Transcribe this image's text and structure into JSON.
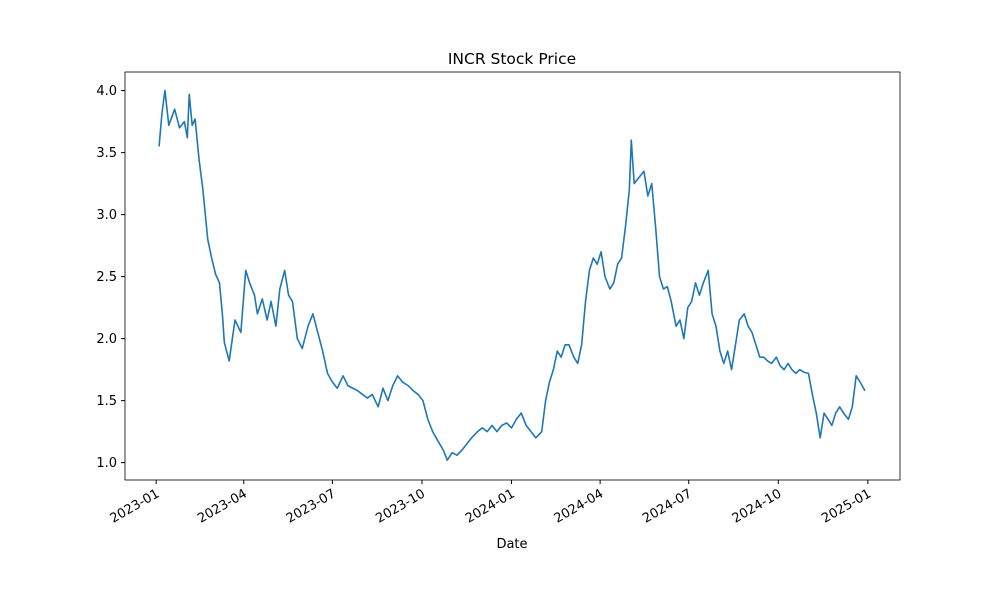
{
  "chart_data": {
    "type": "line",
    "title": "INCR Stock Price",
    "x_label": "Date",
    "color": "#1f77b4",
    "x": [
      "2023-01-04",
      "2023-01-07",
      "2023-01-10",
      "2023-01-14",
      "2023-01-20",
      "2023-01-25",
      "2023-01-30",
      "2023-02-02",
      "2023-02-04",
      "2023-02-07",
      "2023-02-10",
      "2023-02-14",
      "2023-02-18",
      "2023-02-23",
      "2023-02-27",
      "2023-03-03",
      "2023-03-07",
      "2023-03-10",
      "2023-03-12",
      "2023-03-17",
      "2023-03-23",
      "2023-03-29",
      "2023-04-03",
      "2023-04-07",
      "2023-04-12",
      "2023-04-15",
      "2023-04-20",
      "2023-04-25",
      "2023-04-29",
      "2023-05-04",
      "2023-05-08",
      "2023-05-13",
      "2023-05-17",
      "2023-05-21",
      "2023-05-26",
      "2023-05-31",
      "2023-06-06",
      "2023-06-11",
      "2023-06-16",
      "2023-06-21",
      "2023-06-26",
      "2023-07-01",
      "2023-07-06",
      "2023-07-12",
      "2023-07-17",
      "2023-07-22",
      "2023-07-27",
      "2023-08-01",
      "2023-08-06",
      "2023-08-11",
      "2023-08-17",
      "2023-08-22",
      "2023-08-27",
      "2023-09-01",
      "2023-09-06",
      "2023-09-11",
      "2023-09-17",
      "2023-09-22",
      "2023-09-27",
      "2023-10-02",
      "2023-10-07",
      "2023-10-12",
      "2023-10-17",
      "2023-10-23",
      "2023-10-27",
      "2023-11-01",
      "2023-11-06",
      "2023-11-11",
      "2023-11-16",
      "2023-11-21",
      "2023-11-27",
      "2023-12-02",
      "2023-12-07",
      "2023-12-12",
      "2023-12-17",
      "2023-12-22",
      "2023-12-27",
      "2024-01-01",
      "2024-01-06",
      "2024-01-11",
      "2024-01-16",
      "2024-01-21",
      "2024-01-26",
      "2024-02-01",
      "2024-02-05",
      "2024-02-09",
      "2024-02-13",
      "2024-02-17",
      "2024-02-21",
      "2024-02-25",
      "2024-02-29",
      "2024-03-05",
      "2024-03-09",
      "2024-03-13",
      "2024-03-17",
      "2024-03-21",
      "2024-03-25",
      "2024-03-29",
      "2024-04-02",
      "2024-04-06",
      "2024-04-11",
      "2024-04-15",
      "2024-04-19",
      "2024-04-23",
      "2024-04-27",
      "2024-05-01",
      "2024-05-03",
      "2024-05-06",
      "2024-05-11",
      "2024-05-16",
      "2024-05-20",
      "2024-05-24",
      "2024-05-28",
      "2024-06-01",
      "2024-06-05",
      "2024-06-09",
      "2024-06-13",
      "2024-06-18",
      "2024-06-22",
      "2024-06-26",
      "2024-06-30",
      "2024-07-04",
      "2024-07-08",
      "2024-07-12",
      "2024-07-16",
      "2024-07-21",
      "2024-07-25",
      "2024-07-29",
      "2024-08-02",
      "2024-08-06",
      "2024-08-10",
      "2024-08-14",
      "2024-08-18",
      "2024-08-22",
      "2024-08-27",
      "2024-08-31",
      "2024-09-04",
      "2024-09-08",
      "2024-09-12",
      "2024-09-16",
      "2024-09-20",
      "2024-09-24",
      "2024-09-29",
      "2024-10-03",
      "2024-10-07",
      "2024-10-11",
      "2024-10-15",
      "2024-10-19",
      "2024-10-23",
      "2024-10-27",
      "2024-11-01",
      "2024-11-05",
      "2024-11-09",
      "2024-11-13",
      "2024-11-17",
      "2024-11-21",
      "2024-11-25",
      "2024-11-29",
      "2024-12-03",
      "2024-12-07",
      "2024-12-12",
      "2024-12-16",
      "2024-12-20",
      "2024-12-24",
      "2024-12-29"
    ],
    "values": [
      3.55,
      3.82,
      4.0,
      3.72,
      3.85,
      3.7,
      3.75,
      3.62,
      3.97,
      3.72,
      3.77,
      3.45,
      3.2,
      2.8,
      2.65,
      2.52,
      2.45,
      2.2,
      1.97,
      1.82,
      2.15,
      2.05,
      2.55,
      2.45,
      2.35,
      2.2,
      2.32,
      2.15,
      2.3,
      2.1,
      2.4,
      2.55,
      2.35,
      2.3,
      2.0,
      1.92,
      2.1,
      2.2,
      2.05,
      1.9,
      1.72,
      1.65,
      1.6,
      1.7,
      1.62,
      1.6,
      1.58,
      1.55,
      1.52,
      1.55,
      1.45,
      1.6,
      1.5,
      1.62,
      1.7,
      1.65,
      1.62,
      1.58,
      1.55,
      1.5,
      1.35,
      1.25,
      1.18,
      1.1,
      1.02,
      1.08,
      1.06,
      1.1,
      1.15,
      1.2,
      1.25,
      1.28,
      1.25,
      1.3,
      1.25,
      1.3,
      1.32,
      1.28,
      1.35,
      1.4,
      1.3,
      1.25,
      1.2,
      1.25,
      1.5,
      1.65,
      1.75,
      1.9,
      1.85,
      1.95,
      1.95,
      1.85,
      1.8,
      1.95,
      2.3,
      2.55,
      2.65,
      2.6,
      2.7,
      2.5,
      2.4,
      2.45,
      2.6,
      2.65,
      2.9,
      3.2,
      3.6,
      3.25,
      3.3,
      3.35,
      3.15,
      3.25,
      2.9,
      2.5,
      2.4,
      2.42,
      2.3,
      2.1,
      2.15,
      2.0,
      2.25,
      2.3,
      2.45,
      2.35,
      2.45,
      2.55,
      2.2,
      2.1,
      1.9,
      1.8,
      1.9,
      1.75,
      1.95,
      2.15,
      2.2,
      2.1,
      2.05,
      1.95,
      1.85,
      1.85,
      1.82,
      1.8,
      1.85,
      1.78,
      1.75,
      1.8,
      1.75,
      1.72,
      1.75,
      1.73,
      1.72,
      1.55,
      1.4,
      1.2,
      1.4,
      1.35,
      1.3,
      1.4,
      1.45,
      1.4,
      1.35,
      1.45,
      1.7,
      1.65,
      1.58
    ],
    "xlim": [
      "2022-11-30",
      "2025-02-03"
    ],
    "xticks": [
      "2023-01",
      "2023-04",
      "2023-07",
      "2023-10",
      "2024-01",
      "2024-04",
      "2024-07",
      "2024-10",
      "2025-01"
    ],
    "ylim": [
      0.86,
      4.15
    ],
    "yticks": [
      {
        "value": 1,
        "label": "1.0"
      },
      1.5,
      {
        "value": 2,
        "label": "2.0"
      },
      2.5,
      {
        "value": 3,
        "label": "3.0"
      },
      3.5,
      {
        "value": 4,
        "label": "4.0"
      }
    ]
  }
}
